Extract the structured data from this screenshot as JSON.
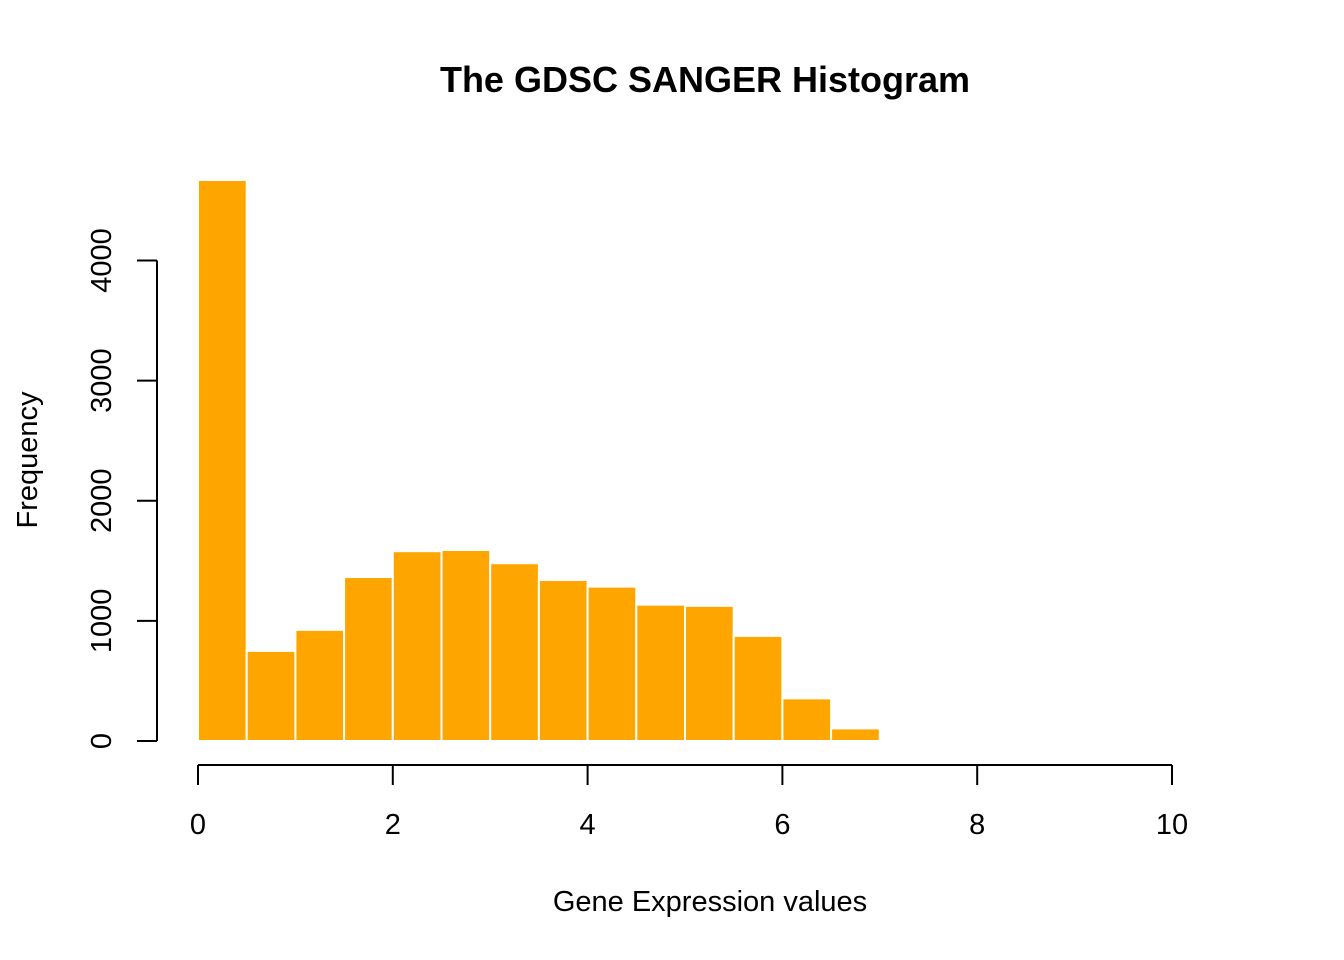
{
  "chart_data": {
    "type": "bar",
    "title": "The GDSC SANGER Histogram",
    "xlabel": "Gene Expression values",
    "ylabel": "Frequency",
    "bin_edges": [
      0,
      0.5,
      1,
      1.5,
      2,
      2.5,
      3,
      3.5,
      4,
      4.5,
      5,
      5.5,
      6,
      6.5,
      7,
      7.5
    ],
    "values": [
      4670,
      750,
      925,
      1365,
      1580,
      1590,
      1480,
      1340,
      1285,
      1135,
      1125,
      875,
      355,
      105,
      15
    ],
    "xlim": [
      0,
      10
    ],
    "ylim": [
      0,
      4670
    ],
    "x_ticks": [
      0,
      2,
      4,
      6,
      8,
      10
    ],
    "y_ticks": [
      0,
      1000,
      2000,
      3000,
      4000
    ],
    "bar_color": "#FFA500",
    "bar_border_color": "#FFFFFF",
    "grid": false,
    "legend": "none"
  }
}
